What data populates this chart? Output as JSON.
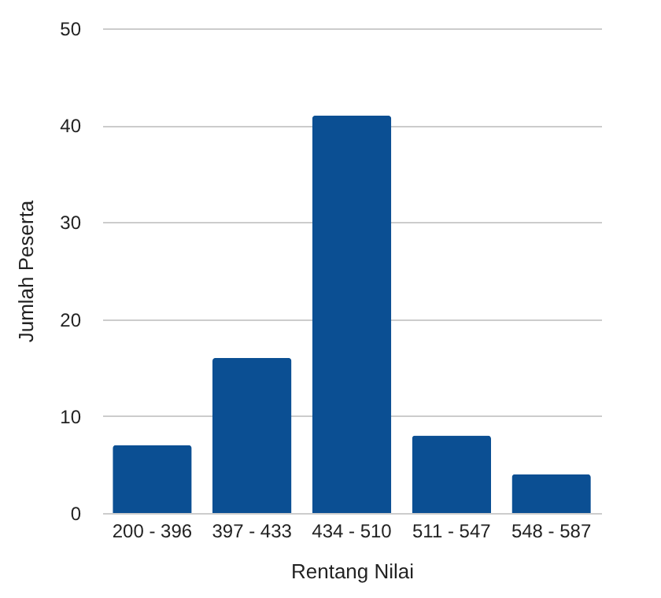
{
  "chart_data": {
    "type": "bar",
    "xlabel": "Rentang Nilai",
    "ylabel": "Jumlah Peserta",
    "categories": [
      "200 - 396",
      "397 - 433",
      "434 - 510",
      "511 - 547",
      "548 - 587"
    ],
    "values": [
      7,
      16,
      41,
      8,
      4
    ],
    "color": "#0b4f93",
    "ylim": [
      0,
      50
    ],
    "yticks": [
      0,
      10,
      20,
      30,
      40,
      50
    ],
    "grid": "y"
  }
}
